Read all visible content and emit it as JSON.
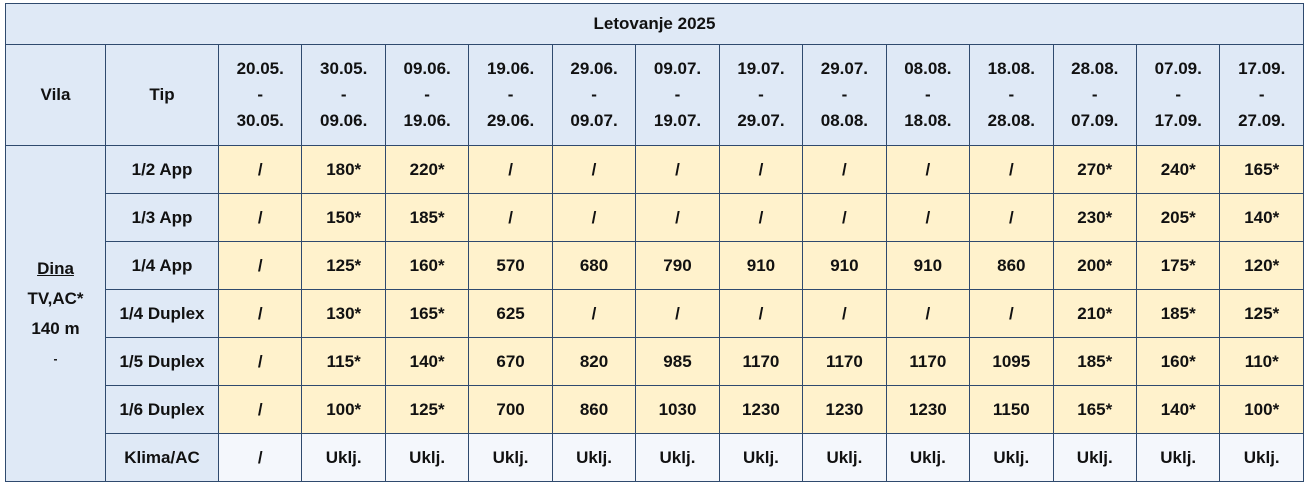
{
  "table": {
    "title": "Letovanje 2025",
    "header": {
      "vila": "Vila",
      "tip": "Tip",
      "periods": [
        [
          "20.05.",
          "-",
          "30.05."
        ],
        [
          "30.05.",
          "-",
          "09.06."
        ],
        [
          "09.06.",
          "-",
          "19.06."
        ],
        [
          "19.06.",
          "-",
          "29.06."
        ],
        [
          "29.06.",
          "-",
          "09.07."
        ],
        [
          "09.07.",
          "-",
          "19.07."
        ],
        [
          "19.07.",
          "-",
          "29.07."
        ],
        [
          "29.07.",
          "-",
          "08.08."
        ],
        [
          "08.08.",
          "-",
          "18.08."
        ],
        [
          "18.08.",
          "-",
          "28.08."
        ],
        [
          "28.08.",
          "-",
          "07.09."
        ],
        [
          "07.09.",
          "-",
          "17.09."
        ],
        [
          "17.09.",
          "-",
          "27.09."
        ]
      ]
    },
    "vila": [
      "Dina",
      "TV,AC*",
      "140 m",
      "-"
    ],
    "rows": [
      {
        "tip": "1/2 App",
        "values": [
          "/",
          "180*",
          "220*",
          "/",
          "/",
          "/",
          "/",
          "/",
          "/",
          "/",
          "270*",
          "240*",
          "165*"
        ]
      },
      {
        "tip": "1/3 App",
        "values": [
          "/",
          "150*",
          "185*",
          "/",
          "/",
          "/",
          "/",
          "/",
          "/",
          "/",
          "230*",
          "205*",
          "140*"
        ]
      },
      {
        "tip": "1/4 App",
        "values": [
          "/",
          "125*",
          "160*",
          "570",
          "680",
          "790",
          "910",
          "910",
          "910",
          "860",
          "200*",
          "175*",
          "120*"
        ]
      },
      {
        "tip": "1/4 Duplex",
        "values": [
          "/",
          "130*",
          "165*",
          "625",
          "/",
          "/",
          "/",
          "/",
          "/",
          "/",
          "210*",
          "185*",
          "125*"
        ]
      },
      {
        "tip": "1/5 Duplex",
        "values": [
          "/",
          "115*",
          "140*",
          "670",
          "820",
          "985",
          "1170",
          "1170",
          "1170",
          "1095",
          "185*",
          "160*",
          "110*"
        ]
      },
      {
        "tip": "1/6 Duplex",
        "values": [
          "/",
          "100*",
          "125*",
          "700",
          "860",
          "1030",
          "1230",
          "1230",
          "1230",
          "1150",
          "165*",
          "140*",
          "100*"
        ]
      },
      {
        "tip": "Klima/AC",
        "values": [
          "/",
          "Uklj.",
          "Uklj.",
          "Uklj.",
          "Uklj.",
          "Uklj.",
          "Uklj.",
          "Uklj.",
          "Uklj.",
          "Uklj.",
          "Uklj.",
          "Uklj.",
          "Uklj."
        ]
      }
    ]
  }
}
